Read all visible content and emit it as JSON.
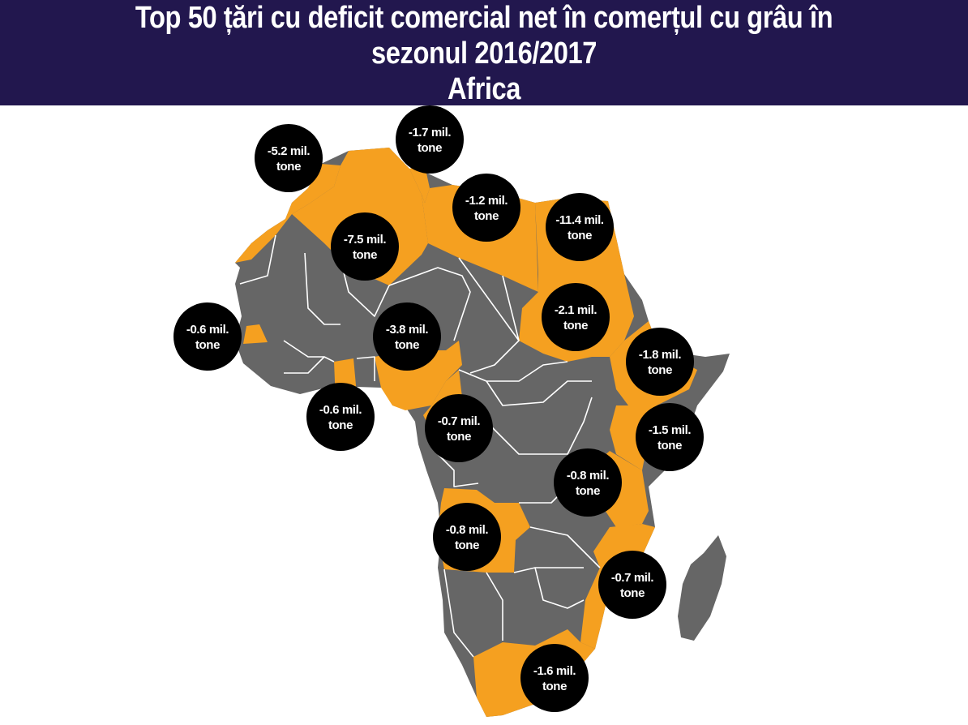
{
  "title": {
    "line1": "Top 50 țări cu deficit comercial net în comerțul cu grâu în",
    "line2": "sezonul 2016/2017",
    "line3": "Africa"
  },
  "colors": {
    "header_bg": "#22174e",
    "highlight": "#f5a020",
    "other": "#666666",
    "marker": "#000000"
  },
  "markers": [
    {
      "line1": "-5.2 mil.",
      "line2": "tone"
    },
    {
      "line1": "-1.7 mil.",
      "line2": "tone"
    },
    {
      "line1": "-1.2 mil.",
      "line2": "tone"
    },
    {
      "line1": "-11.4 mil.",
      "line2": "tone"
    },
    {
      "line1": "-7.5 mil.",
      "line2": "tone"
    },
    {
      "line1": "-2.1 mil.",
      "line2": "tone"
    },
    {
      "line1": "-0.6 mil.",
      "line2": "tone"
    },
    {
      "line1": "-3.8 mil.",
      "line2": "tone"
    },
    {
      "line1": "-1.8 mil.",
      "line2": "tone"
    },
    {
      "line1": "-0.6 mil.",
      "line2": "tone"
    },
    {
      "line1": "-0.7 mil.",
      "line2": "tone"
    },
    {
      "line1": "-1.5 mil.",
      "line2": "tone"
    },
    {
      "line1": "-0.8 mil.",
      "line2": "tone"
    },
    {
      "line1": "-0.8 mil.",
      "line2": "tone"
    },
    {
      "line1": "-0.7 mil.",
      "line2": "tone"
    },
    {
      "line1": "-1.6 mil.",
      "line2": "tone"
    }
  ]
}
